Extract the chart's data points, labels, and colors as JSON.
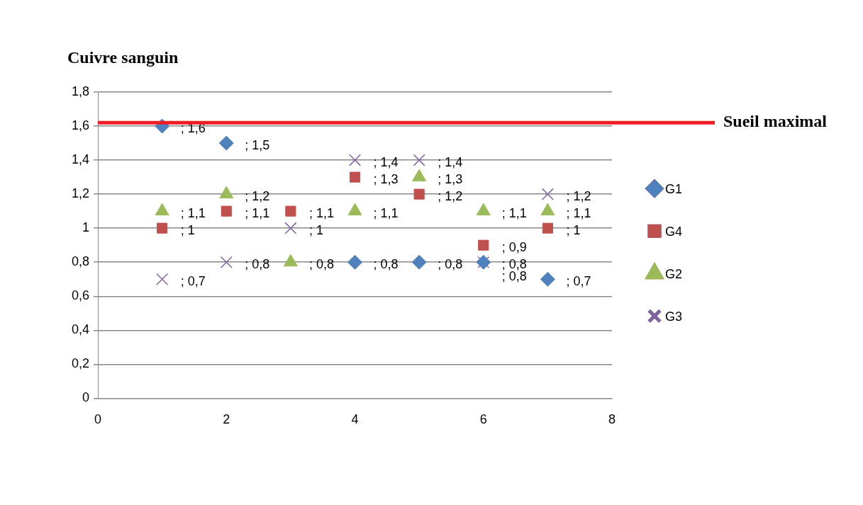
{
  "chart_data": {
    "type": "scatter",
    "title": "Cuivre sanguin",
    "x": [
      1,
      2,
      3,
      4,
      5,
      6,
      7
    ],
    "series": [
      {
        "name": "G1",
        "color": "#4f81bd",
        "marker": "diamond",
        "values": [
          1.6,
          1.5,
          null,
          0.8,
          0.8,
          0.8,
          0.7
        ],
        "value_labels": [
          "; 1,6",
          "; 1,5",
          null,
          "; 0,8",
          "; 0,8",
          "; 0,8",
          "; 0,7"
        ]
      },
      {
        "name": "G4",
        "color": "#c0504d",
        "marker": "square",
        "values": [
          1,
          1.1,
          1.1,
          1.3,
          1.2,
          0.9,
          1
        ],
        "value_labels": [
          "; 1",
          "; 1,1",
          "; 1,1",
          "; 1,3",
          "; 1,2",
          "; 0,9",
          "; 1"
        ]
      },
      {
        "name": "G2",
        "color": "#9bbb59",
        "marker": "triangle",
        "values": [
          1.1,
          1.2,
          0.8,
          1.1,
          1.3,
          1.1,
          1.1
        ],
        "value_labels": [
          "; 1,1",
          "; 1,2",
          "; 0,8",
          "; 1,1",
          "; 1,3",
          "; 1,1",
          "; 1,1"
        ]
      },
      {
        "name": "G3",
        "color": "#8064a2",
        "marker": "cross",
        "values": [
          0.7,
          0.8,
          1,
          1.4,
          1.4,
          0.8,
          1.2
        ],
        "value_labels": [
          "; 0,7",
          "; 0,8",
          "; 1",
          "; 1,4",
          "; 1,4",
          "; 0,8",
          "; 1,2"
        ]
      }
    ],
    "xlim": [
      0,
      8
    ],
    "xticks": [
      0,
      2,
      4,
      6,
      8
    ],
    "ylim": [
      0,
      1.8
    ],
    "yticks": [
      0,
      {
        "value": 0.2,
        "label": "0,2"
      },
      {
        "value": 0.4,
        "label": "0,4"
      },
      {
        "value": 0.6,
        "label": "0,6"
      },
      {
        "value": 0.8,
        "label": "0,8"
      },
      1,
      {
        "value": 1.2,
        "label": "1,2"
      },
      {
        "value": 1.4,
        "label": "1,4"
      },
      {
        "value": 1.6,
        "label": "1,6"
      },
      {
        "value": 1.8,
        "label": "1,8"
      }
    ],
    "grid": "y",
    "legend": "right",
    "ref_lines": [
      {
        "axis": "y",
        "value": 1.62,
        "label": "Sueil maximal",
        "color": "#ee1c25"
      }
    ]
  }
}
